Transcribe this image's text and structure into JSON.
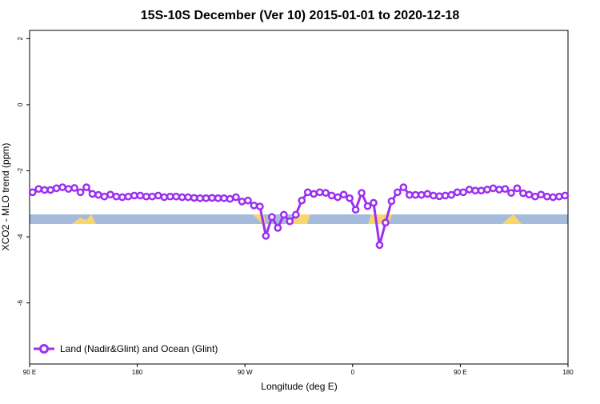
{
  "chart_data": {
    "type": "line",
    "title": "15S-10S December (Ver 10)   2015-01-01 to 2020-12-18",
    "xlabel": "Longitude (deg E)",
    "ylabel": "XCO2 - MLO trend (ppm)",
    "xlim": [
      90,
      540
    ],
    "xticks": [
      {
        "value": 90,
        "label": "90 E"
      },
      {
        "value": 180,
        "label": "180"
      },
      {
        "value": 270,
        "label": "90 W"
      },
      {
        "value": 360,
        "label": "0"
      },
      {
        "value": 450,
        "label": "90 E"
      },
      {
        "value": 540,
        "label": "180"
      }
    ],
    "ylim": [
      -7.85,
      2.25
    ],
    "yticks": [
      2,
      0,
      -2,
      -4,
      -6
    ],
    "legend": "bottom-left",
    "x": [
      92.5,
      97.5,
      102.5,
      107.5,
      112.5,
      117.5,
      122.5,
      127.5,
      132.5,
      137.5,
      142.5,
      147.5,
      152.5,
      157.5,
      162.5,
      167.5,
      172.5,
      177.5,
      182.5,
      187.5,
      192.5,
      197.5,
      202.5,
      207.5,
      212.5,
      217.5,
      222.5,
      227.5,
      232.5,
      237.5,
      242.5,
      247.5,
      252.5,
      257.5,
      262.5,
      267.5,
      272.5,
      277.5,
      282.5,
      287.5,
      292.5,
      297.5,
      302.5,
      307.5,
      312.5,
      317.5,
      322.5,
      327.5,
      332.5,
      337.5,
      342.5,
      347.5,
      352.5,
      357.5,
      362.5,
      367.5,
      372.5,
      377.5,
      382.5,
      387.5,
      392.5,
      397.5,
      402.5,
      407.5,
      412.5,
      417.5,
      422.5,
      427.5,
      432.5,
      437.5,
      442.5,
      447.5,
      452.5,
      457.5,
      462.5,
      467.5,
      472.5,
      477.5,
      482.5,
      487.5,
      492.5,
      497.5,
      502.5,
      507.5,
      512.5,
      517.5,
      522.5,
      527.5,
      532.5,
      537.5
    ],
    "series": [
      {
        "name": "Land (Nadir&Glint) and Ocean (Glint)",
        "color": "#9b30f0",
        "values": [
          -2.65,
          -2.55,
          -2.58,
          -2.58,
          -2.53,
          -2.5,
          -2.55,
          -2.52,
          -2.65,
          -2.5,
          -2.7,
          -2.73,
          -2.78,
          -2.72,
          -2.78,
          -2.8,
          -2.78,
          -2.75,
          -2.75,
          -2.78,
          -2.78,
          -2.75,
          -2.8,
          -2.78,
          -2.78,
          -2.8,
          -2.8,
          -2.82,
          -2.83,
          -2.83,
          -2.82,
          -2.83,
          -2.83,
          -2.85,
          -2.8,
          -2.93,
          -2.9,
          -3.05,
          -3.08,
          -3.97,
          -3.4,
          -3.73,
          -3.33,
          -3.53,
          -3.33,
          -2.9,
          -2.65,
          -2.7,
          -2.65,
          -2.67,
          -2.75,
          -2.8,
          -2.72,
          -2.83,
          -3.18,
          -2.67,
          -3.07,
          -2.97,
          -4.25,
          -3.57,
          -2.92,
          -2.65,
          -2.5,
          -2.73,
          -2.73,
          -2.73,
          -2.7,
          -2.75,
          -2.77,
          -2.75,
          -2.73,
          -2.65,
          -2.65,
          -2.57,
          -2.6,
          -2.6,
          -2.57,
          -2.53,
          -2.57,
          -2.55,
          -2.67,
          -2.53,
          -2.68,
          -2.72,
          -2.78,
          -2.72,
          -2.78,
          -2.8,
          -2.78,
          -2.75
        ]
      }
    ]
  }
}
